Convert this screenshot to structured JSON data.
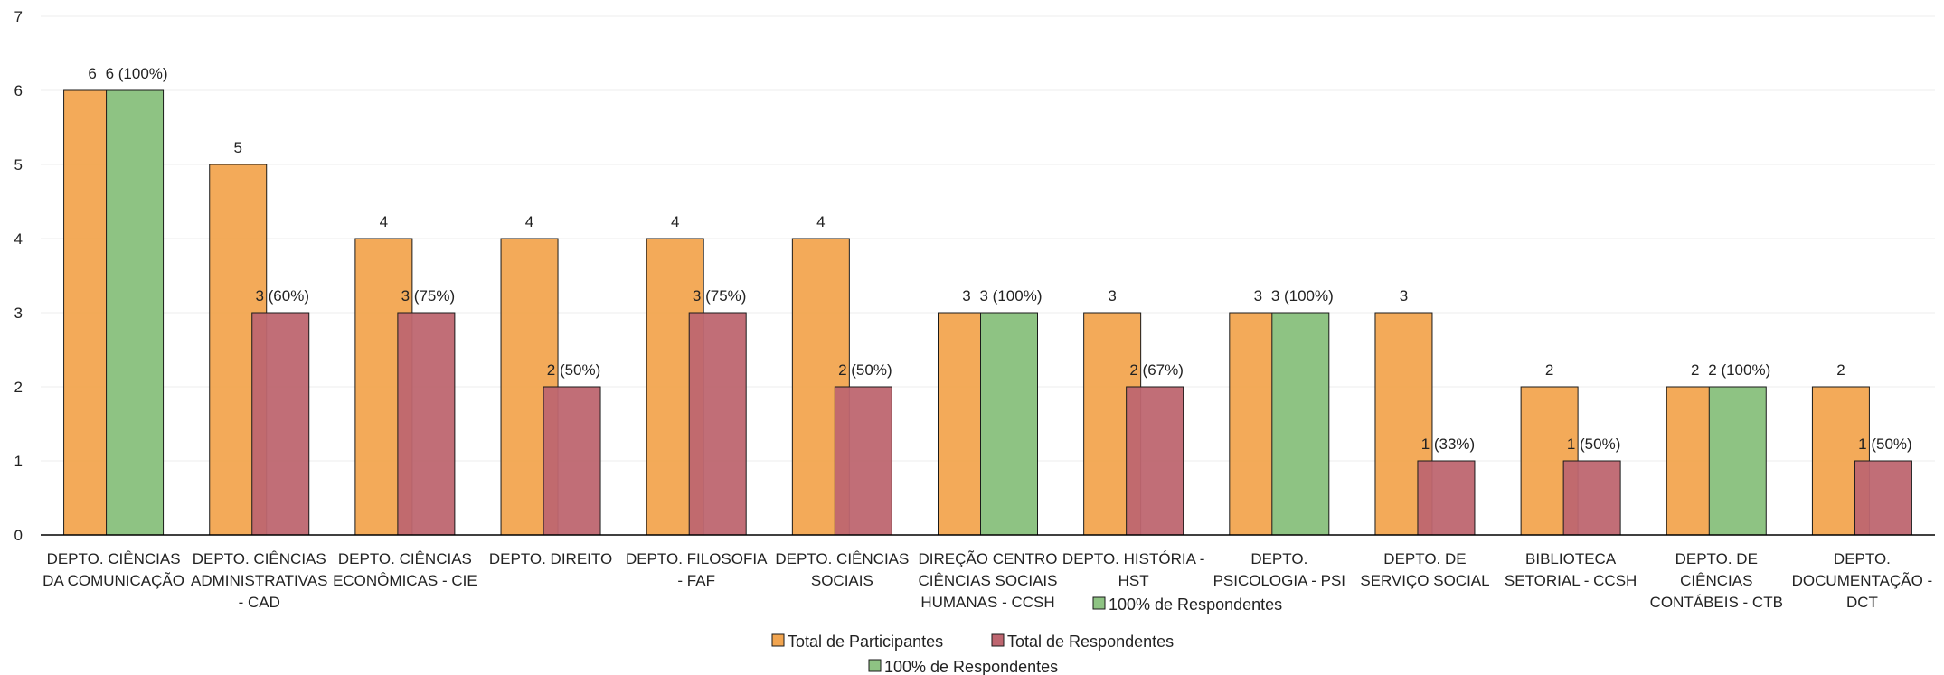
{
  "chart_data": {
    "type": "bar",
    "title": "",
    "xlabel": "",
    "ylabel": "",
    "ylim": [
      0,
      7
    ],
    "yticks": [
      0,
      1,
      2,
      3,
      4,
      5,
      6,
      7
    ],
    "grid": true,
    "legend_position": "bottom",
    "categories": [
      [
        "DEPTO. CIÊNCIAS",
        "DA COMUNICAÇÃO"
      ],
      [
        "DEPTO. CIÊNCIAS",
        "ADMINISTRATIVAS",
        "- CAD"
      ],
      [
        "DEPTO. CIÊNCIAS",
        "ECONÔMICAS - CIE"
      ],
      [
        "DEPTO. DIREITO"
      ],
      [
        "DEPTO. FILOSOFIA",
        "- FAF"
      ],
      [
        "DEPTO. CIÊNCIAS",
        "SOCIAIS"
      ],
      [
        "DIREÇÃO CENTRO",
        "CIÊNCIAS SOCIAIS",
        "HUMANAS - CCSH"
      ],
      [
        "DEPTO. HISTÓRIA -",
        "HST"
      ],
      [
        "DEPTO.",
        "PSICOLOGIA - PSI"
      ],
      [
        "DEPTO. DE",
        "SERVIÇO SOCIAL"
      ],
      [
        "BIBLIOTECA",
        "SETORIAL - CCSH"
      ],
      [
        "DEPTO. DE",
        "CIÊNCIAS",
        "CONTÁBEIS - CTB"
      ],
      [
        "DEPTO.",
        "DOCUMENTAÇÃO -",
        "DCT"
      ]
    ],
    "series": [
      {
        "name": "Total de Participantes",
        "color": "#F2A550",
        "values": [
          6,
          5,
          4,
          4,
          4,
          4,
          3,
          3,
          3,
          3,
          2,
          2,
          2
        ],
        "labels": [
          "6",
          "5",
          "4",
          "4",
          "4",
          "4",
          "3",
          "3",
          "3",
          "3",
          "2",
          "2",
          "2"
        ]
      },
      {
        "name": "Total de Respondentes",
        "color": "#BE6670",
        "values": [
          null,
          3,
          3,
          2,
          3,
          2,
          null,
          2,
          null,
          1,
          1,
          null,
          1
        ],
        "labels": [
          null,
          "3 (60%)",
          "3 (75%)",
          "2 (50%)",
          "3 (75%)",
          "2 (50%)",
          null,
          "2 (67%)",
          null,
          "1 (33%)",
          "1 (50%)",
          null,
          "1 (50%)"
        ]
      },
      {
        "name": "100% de Respondentes",
        "color": "#8EC383",
        "values": [
          6,
          null,
          null,
          null,
          null,
          null,
          3,
          null,
          3,
          null,
          null,
          2,
          null
        ],
        "labels": [
          "6 (100%)",
          null,
          null,
          null,
          null,
          null,
          "3 (100%)",
          null,
          "3 (100%)",
          null,
          null,
          "2 (100%)",
          null
        ]
      }
    ],
    "extra_legend_label": "100% de Respondentes"
  }
}
